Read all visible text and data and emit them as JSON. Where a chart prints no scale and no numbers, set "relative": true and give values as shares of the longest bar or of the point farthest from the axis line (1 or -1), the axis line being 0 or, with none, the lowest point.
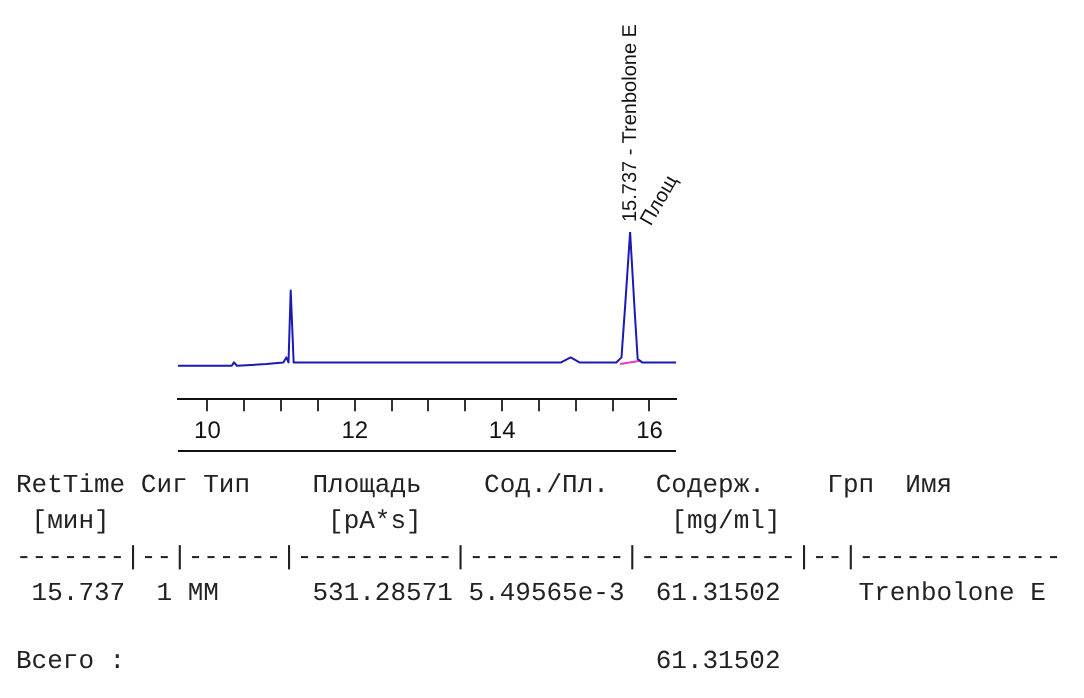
{
  "chart_data": {
    "type": "line",
    "relative": true,
    "x": [
      9.6,
      10.0,
      10.33,
      10.36,
      10.4,
      10.8,
      11.03,
      11.07,
      11.1,
      11.13,
      11.17,
      11.3,
      12.0,
      13.0,
      14.0,
      14.8,
      14.93,
      15.05,
      15.55,
      15.62,
      15.67,
      15.737,
      15.8,
      15.84,
      15.9,
      16.36
    ],
    "series": [
      {
        "color": "#1a1ab4",
        "values": [
          0.2,
          0.2,
          0.2,
          0.22,
          0.2,
          0.21,
          0.22,
          0.25,
          0.22,
          0.65,
          0.22,
          0.22,
          0.22,
          0.22,
          0.22,
          0.22,
          0.25,
          0.22,
          0.22,
          0.25,
          0.56,
          1,
          0.52,
          0.24,
          0.22,
          0.22
        ]
      },
      {
        "color": "#e040c0",
        "x": [
          15.6,
          15.88
        ],
        "values": [
          0.21,
          0.23
        ]
      }
    ],
    "xlim": [
      9.6,
      16.36
    ],
    "xticks": [
      10,
      {
        "value": 10.5,
        "label": null
      },
      {
        "value": 11,
        "label": null
      },
      {
        "value": 11.5,
        "label": null
      },
      12,
      {
        "value": 12.5,
        "label": null
      },
      {
        "value": 13,
        "label": null
      },
      {
        "value": 13.5,
        "label": null
      },
      14,
      {
        "value": 14.5,
        "label": null
      },
      {
        "value": 15,
        "label": null
      },
      {
        "value": 15.5,
        "label": null
      },
      16
    ],
    "grid": false,
    "legend": false,
    "marker": "none",
    "line_style": "solid",
    "annotations": [
      {
        "text": "15.737 - Trenbolone E",
        "x": 15.737,
        "y": 1
      },
      {
        "text": "Площ",
        "x": 15.737,
        "y": 1
      },
      "RetTime Сиг Тип    Площадь    Сод./Пл.   Содерж.    Грп  Имя",
      " [мин]              [pA*s]                [mg/ml]",
      "-------|--|------|----------|----------|----------|--|-------------",
      " 15.737  1 MM      531.28571 5.49565e-3  61.31502     Trenbolone E",
      "Всего :                                  61.31502"
    ]
  }
}
